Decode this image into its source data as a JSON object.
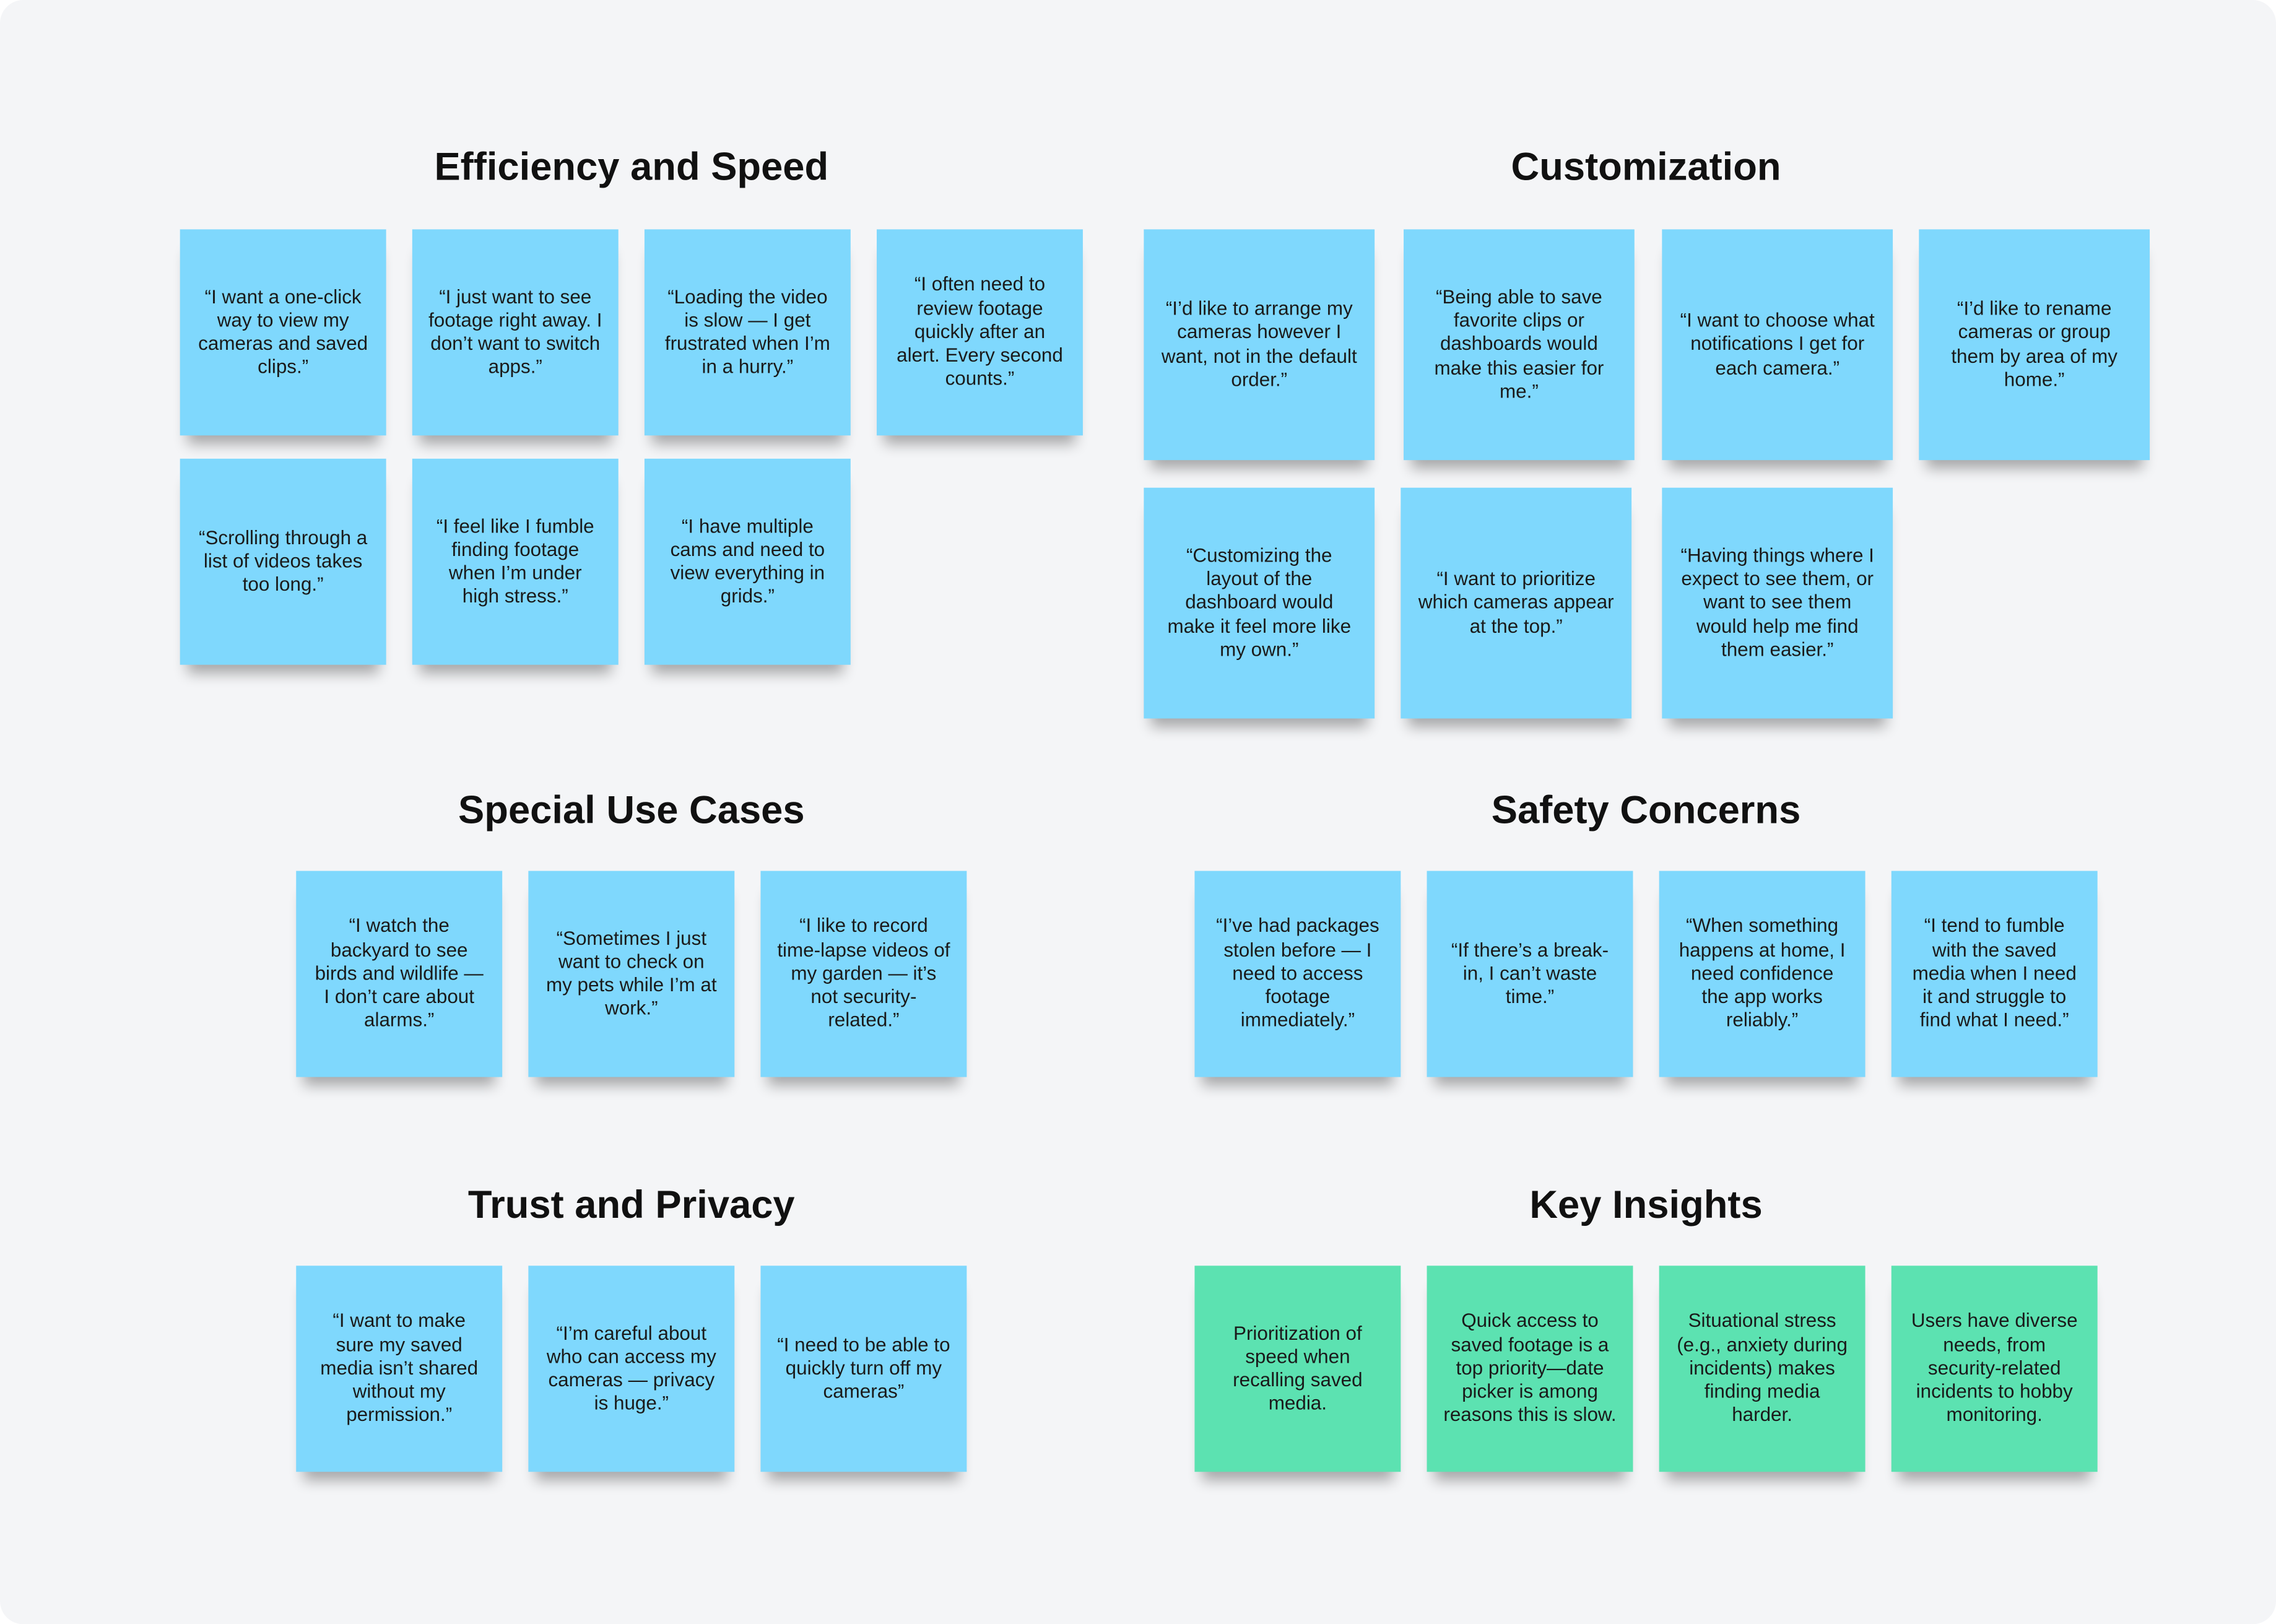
{
  "groups": [
    {
      "title": "Efficiency and Speed",
      "note_color": "#7fd8fd",
      "notes": [
        "“I want a one-click way to view my cameras and saved clips.”",
        "“I just want to see footage right away. I don’t want to switch apps.”",
        "“Loading the video is slow — I get frustrated when I’m in a hurry.”",
        "“I often need to review footage quickly after an alert. Every second counts.”",
        "“Scrolling through a list of videos takes too long.”",
        "“I feel like I fumble finding footage when I’m under high stress.”",
        "“I have multiple cams and need to view everything in grids.”"
      ]
    },
    {
      "title": "Customization",
      "note_color": "#7fd8fd",
      "notes": [
        "“I’d like to arrange my cameras however I want, not in the default order.”",
        "“Being able to save favorite clips or dashboards would make this easier for me.”",
        "“I want to choose what notifications I get for each camera.”",
        "“I’d like to rename cameras or group them by area of my home.”",
        "“Customizing the layout of the dashboard would make it feel more like my own.”",
        "“I want to prioritize which cameras appear at the top.”",
        "“Having things where I expect to see them, or want to see them would help me find them easier.”"
      ]
    },
    {
      "title": "Special Use Cases",
      "note_color": "#7fd8fd",
      "notes": [
        "“I watch the backyard to see birds and wildlife — I don’t care about alarms.”",
        "“Sometimes I just want to check on my pets while I’m at work.”",
        "“I like to record time-lapse videos of my garden — it’s not security-related.”"
      ]
    },
    {
      "title": "Safety Concerns",
      "note_color": "#7fd8fd",
      "notes": [
        "“I’ve had packages stolen before — I need to access footage immediately.”",
        "“If there’s a break-in, I can’t waste time.”",
        "“When something happens at home, I need confidence the app works reliably.”",
        "“I tend to fumble with the saved media when I need it and struggle to find what I need.”"
      ]
    },
    {
      "title": "Trust and Privacy",
      "note_color": "#7fd8fd",
      "notes": [
        "“I want to make sure my saved media isn’t shared without my permission.”",
        "“I’m careful about who can access my cameras — privacy is huge.”",
        "“I need to be able to quickly turn off my cameras”"
      ]
    },
    {
      "title": "Key Insights",
      "note_color": "#5ce2b1",
      "notes": [
        "Prioritization of speed when recalling saved media.",
        "Quick access to saved footage is a top priority—date picker is among reasons this is slow.",
        "Situational stress (e.g., anxiety during incidents) makes finding media harder.",
        "Users have diverse needs, from security-related incidents to hobby monitoring."
      ]
    }
  ]
}
